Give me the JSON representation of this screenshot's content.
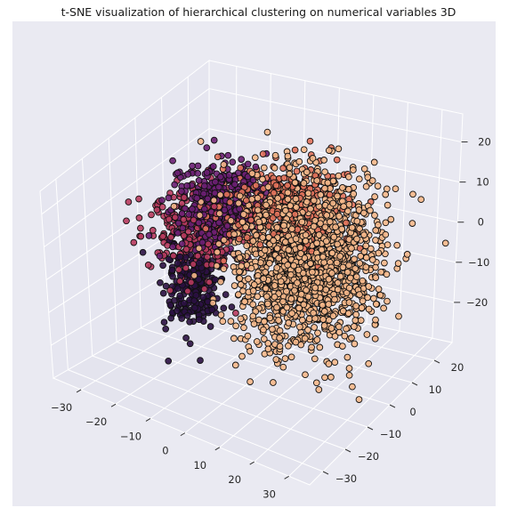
{
  "chart_data": {
    "type": "scatter",
    "projection": "3d",
    "title": "t-SNE visualization of hierarchical clustering on numerical variables 3D",
    "xlabel": "",
    "ylabel": "",
    "zlabel": "",
    "grid": true,
    "background": "#eaeaf2",
    "grid_color": "#ffffff",
    "marker_edge_color": "#111111",
    "x_ticks": [
      "−30",
      "−20",
      "−10",
      "0",
      "10",
      "20",
      "30"
    ],
    "y_ticks": [
      "−30",
      "−20",
      "−10",
      "0",
      "10",
      "20"
    ],
    "z_ticks": [
      "−20",
      "−10",
      "0",
      "10",
      "20"
    ],
    "xlim": [
      -38,
      36
    ],
    "ylim": [
      -36,
      28
    ],
    "zlim": [
      -30,
      27
    ],
    "series": [
      {
        "color": "#2b1142",
        "center": [
          -22,
          0,
          -14
        ],
        "spread": [
          3,
          4,
          6
        ],
        "count": 260
      },
      {
        "color": "#6b1f73",
        "center": [
          -17,
          4,
          6
        ],
        "spread": [
          5,
          5,
          5
        ],
        "count": 420
      },
      {
        "color": "#b83b5e",
        "center": [
          -21,
          2,
          -1
        ],
        "spread": [
          6,
          5,
          5
        ],
        "count": 340
      },
      {
        "color": "#e2725b",
        "center": [
          1,
          6,
          8
        ],
        "spread": [
          8,
          6,
          5
        ],
        "count": 380
      },
      {
        "color": "#f6b88a",
        "center": [
          10,
          2,
          -2
        ],
        "spread": [
          9,
          8,
          10
        ],
        "count": 1600
      }
    ]
  }
}
